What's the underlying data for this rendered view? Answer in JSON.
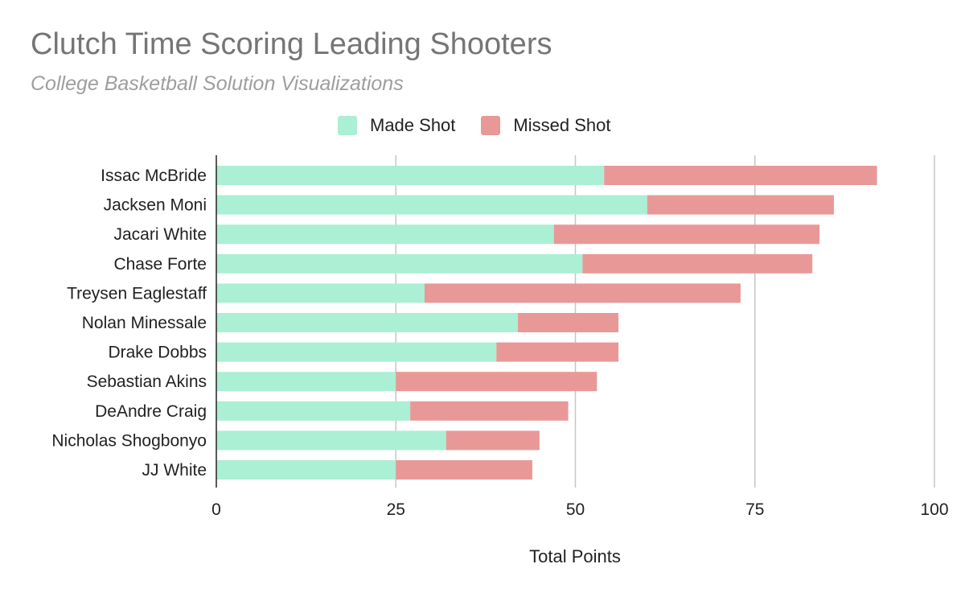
{
  "colors": {
    "made": "#abefd4",
    "missed": "#e99898",
    "grid": "#c6c6c6",
    "axis": "#222222"
  },
  "chart_data": {
    "type": "bar",
    "orientation": "horizontal",
    "stacked": true,
    "title": "Clutch Time Scoring Leading Shooters",
    "subtitle": "College Basketball Solution Visualizations",
    "xlabel": "Total Points",
    "ylabel": "",
    "xlim": [
      0,
      100
    ],
    "xticks": [
      "0",
      "25",
      "50",
      "75",
      "100"
    ],
    "grid": true,
    "legend_position": "top",
    "categories": [
      "Issac McBride",
      "Jacksen Moni",
      "Jacari White",
      "Chase Forte",
      "Treysen Eaglestaff",
      "Nolan Minessale",
      "Drake Dobbs",
      "Sebastian Akins",
      "DeAndre Craig",
      "Nicholas Shogbonyo",
      "JJ White"
    ],
    "series": [
      {
        "name": "Made Shot",
        "values": [
          54,
          60,
          47,
          51,
          29,
          42,
          39,
          25,
          27,
          32,
          25
        ]
      },
      {
        "name": "Missed Shot",
        "values": [
          38,
          26,
          37,
          32,
          44,
          14,
          17,
          28,
          22,
          13,
          19
        ]
      }
    ]
  }
}
